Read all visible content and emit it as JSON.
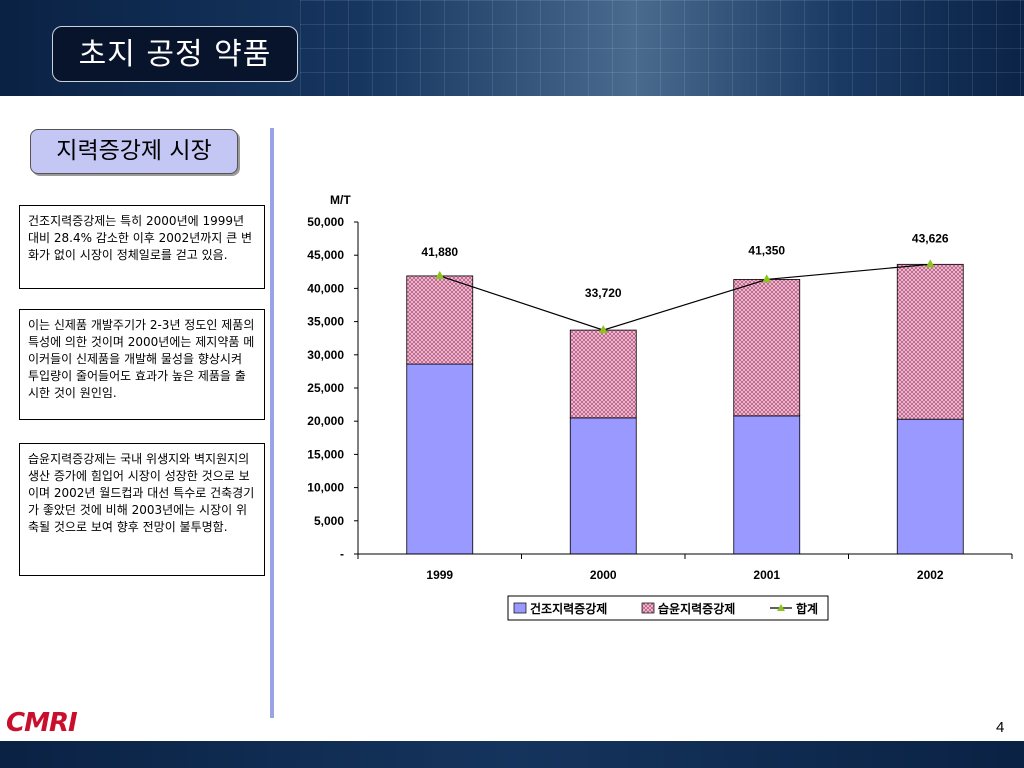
{
  "slide": {
    "title": "초지 공정 약품",
    "subtitle": "지력증강제 시장",
    "page_number": "4",
    "logo_text": "CMRI"
  },
  "notes": [
    "건조지력증강제는 특히 2000년에 1999년 대비 28.4% 감소한 이후 2002년까지 큰 변화가 없이 시장이 정체일로를 걷고 있음.",
    "이는 신제품 개발주기가 2-3년 정도인 제품의 특성에 의한 것이며 2000년에는 제지약품 메이커들이 신제품을 개발해 물성을 향상시켜 투입량이 줄어들어도 효과가 높은 제품을 출시한 것이 원인임.",
    "습윤지력증강제는 국내 위생지와 벽지원지의 생산 증가에 힘입어 시장이 성장한 것으로 보이며 2002년 월드컵과 대선 특수로 건축경기가 좋았던 것에 비해 2003년에는 시장이 위축될 것으로 보여 향후 전망이 불투명함."
  ],
  "chart_data": {
    "type": "bar",
    "stacked": true,
    "unit_label": "M/T",
    "categories": [
      "1999",
      "2000",
      "2001",
      "2002"
    ],
    "series": [
      {
        "name": "건조지력증강제",
        "type": "bar",
        "values": [
          28600,
          20500,
          20800,
          20300
        ],
        "color": "#9999ff"
      },
      {
        "name": "습윤지력증강제",
        "type": "bar",
        "values": [
          13280,
          13220,
          20550,
          23326
        ],
        "color": "#e8b4c8",
        "pattern": "crosshatch"
      },
      {
        "name": "합계",
        "type": "line",
        "values": [
          41880,
          33720,
          41350,
          43626
        ],
        "color": "#000000",
        "marker_color": "#8ec21f"
      }
    ],
    "total_labels": [
      "41,880",
      "33,720",
      "41,350",
      "43,626"
    ],
    "ylim": [
      0,
      50000
    ],
    "yticks": [
      0,
      5000,
      10000,
      15000,
      20000,
      25000,
      30000,
      35000,
      40000,
      45000,
      50000
    ],
    "ytick_labels": [
      "-",
      "5,000",
      "10,000",
      "15,000",
      "20,000",
      "25,000",
      "30,000",
      "35,000",
      "40,000",
      "45,000",
      "50,000"
    ],
    "legend_position": "bottom",
    "grid": false
  }
}
